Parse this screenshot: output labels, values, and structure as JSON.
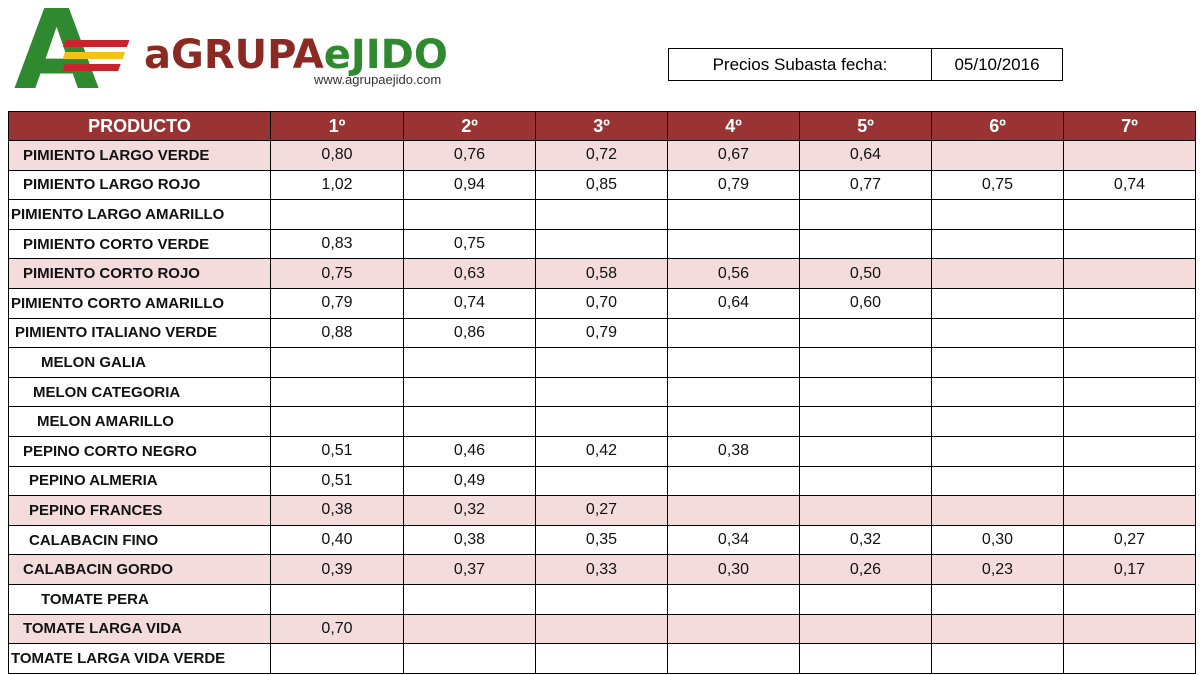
{
  "logo": {
    "mark": "A",
    "brand": [
      "aGRUPA",
      "eJIDO"
    ],
    "url": "www.agrupaejido.com"
  },
  "header": {
    "label": "Precios Subasta fecha:",
    "date": "05/10/2016"
  },
  "table": {
    "columns": [
      "PRODUCTO",
      "1º",
      "2º",
      "3º",
      "4º",
      "5º",
      "6º",
      "7º"
    ],
    "rows": [
      [
        "PIMIENTO LARGO VERDE",
        "0,80",
        "0,76",
        "0,72",
        "0,67",
        "0,64",
        null,
        null
      ],
      [
        "PIMIENTO LARGO ROJO",
        "1,02",
        "0,94",
        "0,85",
        "0,79",
        "0,77",
        "0,75",
        "0,74"
      ],
      [
        "PIMIENTO LARGO AMARILLO",
        null,
        null,
        null,
        null,
        null,
        null,
        null
      ],
      [
        "PIMIENTO CORTO VERDE",
        "0,83",
        "0,75",
        null,
        null,
        null,
        null,
        null
      ],
      [
        "PIMIENTO CORTO ROJO",
        "0,75",
        "0,63",
        "0,58",
        "0,56",
        "0,50",
        null,
        null
      ],
      [
        "PIMIENTO CORTO AMARILLO",
        "0,79",
        "0,74",
        "0,70",
        "0,64",
        "0,60",
        null,
        null
      ],
      [
        "PIMIENTO ITALIANO VERDE",
        "0,88",
        "0,86",
        "0,79",
        null,
        null,
        null,
        null
      ],
      [
        "MELON GALIA",
        null,
        null,
        null,
        null,
        null,
        null,
        null
      ],
      [
        "MELON CATEGORIA",
        null,
        null,
        null,
        null,
        null,
        null,
        null
      ],
      [
        "MELON AMARILLO",
        null,
        null,
        null,
        null,
        null,
        null,
        null
      ],
      [
        "PEPINO CORTO NEGRO",
        "0,51",
        "0,46",
        "0,42",
        "0,38",
        null,
        null,
        null
      ],
      [
        "PEPINO ALMERIA",
        "0,51",
        "0,49",
        null,
        null,
        null,
        null,
        null
      ],
      [
        "PEPINO FRANCES",
        "0,38",
        "0,32",
        "0,27",
        null,
        null,
        null,
        null
      ],
      [
        "CALABACIN FINO",
        "0,40",
        "0,38",
        "0,35",
        "0,34",
        "0,32",
        "0,30",
        "0,27"
      ],
      [
        "CALABACIN GORDO",
        "0,39",
        "0,37",
        "0,33",
        "0,30",
        "0,26",
        "0,23",
        "0,17"
      ],
      [
        "TOMATE PERA",
        null,
        null,
        null,
        null,
        null,
        null,
        null
      ],
      [
        "TOMATE LARGA VIDA",
        "0,70",
        null,
        null,
        null,
        null,
        null,
        null
      ],
      [
        "TOMATE LARGA VIDA VERDE",
        null,
        null,
        null,
        null,
        null,
        null,
        null
      ]
    ]
  }
}
